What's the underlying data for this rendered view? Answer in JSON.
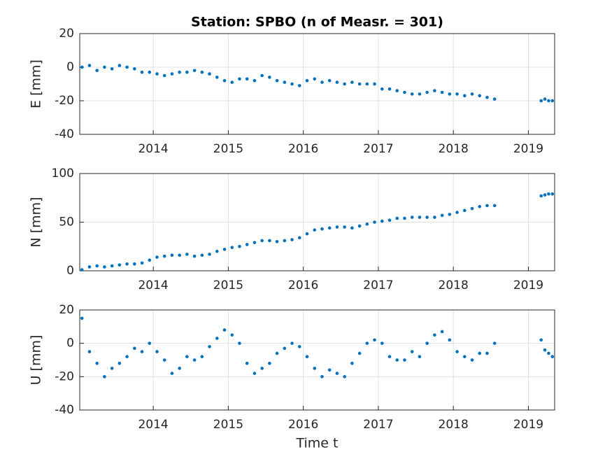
{
  "chart_data": [
    {
      "type": "scatter",
      "title": "Station: SPBO (n of Measr. = 301)",
      "y_label": "E [mm]",
      "color": "#0072bd",
      "grid": true,
      "xlim": [
        2013.02,
        2019.35
      ],
      "xticks": [
        2014,
        2015,
        2016,
        2017,
        2018,
        2019
      ],
      "ylim": [
        -40,
        20
      ],
      "yticks": [
        -40,
        -20,
        0,
        20
      ],
      "x": [
        2013.05,
        2013.15,
        2013.25,
        2013.35,
        2013.45,
        2013.55,
        2013.65,
        2013.75,
        2013.85,
        2013.95,
        2014.05,
        2014.15,
        2014.25,
        2014.35,
        2014.45,
        2014.55,
        2014.65,
        2014.75,
        2014.85,
        2014.95,
        2015.05,
        2015.15,
        2015.25,
        2015.35,
        2015.45,
        2015.55,
        2015.65,
        2015.75,
        2015.85,
        2015.95,
        2016.05,
        2016.15,
        2016.25,
        2016.35,
        2016.45,
        2016.55,
        2016.65,
        2016.75,
        2016.85,
        2016.95,
        2017.05,
        2017.15,
        2017.25,
        2017.35,
        2017.45,
        2017.55,
        2017.65,
        2017.75,
        2017.85,
        2017.95,
        2018.05,
        2018.15,
        2018.25,
        2018.35,
        2018.45,
        2018.55,
        2019.17,
        2019.22,
        2019.27,
        2019.32
      ],
      "values": [
        0,
        1,
        -2,
        0,
        -1,
        1,
        0,
        -1,
        -3,
        -3,
        -4,
        -5,
        -4,
        -3,
        -3,
        -2,
        -3,
        -4,
        -6,
        -8,
        -9,
        -7,
        -7,
        -8,
        -5,
        -6,
        -8,
        -9,
        -10,
        -11,
        -8,
        -7,
        -9,
        -8,
        -9,
        -10,
        -9,
        -10,
        -10,
        -10,
        -13,
        -13,
        -14,
        -15,
        -16,
        -16,
        -15,
        -14,
        -15,
        -16,
        -16,
        -17,
        -16,
        -17,
        -18,
        -19,
        -20,
        -19,
        -20,
        -20
      ]
    },
    {
      "type": "scatter",
      "y_label": "N [mm]",
      "color": "#0072bd",
      "grid": true,
      "xlim": [
        2013.02,
        2019.35
      ],
      "xticks": [
        2014,
        2015,
        2016,
        2017,
        2018,
        2019
      ],
      "ylim": [
        0,
        100
      ],
      "yticks": [
        0,
        50,
        100
      ],
      "x": [
        2013.05,
        2013.15,
        2013.25,
        2013.35,
        2013.45,
        2013.55,
        2013.65,
        2013.75,
        2013.85,
        2013.95,
        2014.05,
        2014.15,
        2014.25,
        2014.35,
        2014.45,
        2014.55,
        2014.65,
        2014.75,
        2014.85,
        2014.95,
        2015.05,
        2015.15,
        2015.25,
        2015.35,
        2015.45,
        2015.55,
        2015.65,
        2015.75,
        2015.85,
        2015.95,
        2016.05,
        2016.15,
        2016.25,
        2016.35,
        2016.45,
        2016.55,
        2016.65,
        2016.75,
        2016.85,
        2016.95,
        2017.05,
        2017.15,
        2017.25,
        2017.35,
        2017.45,
        2017.55,
        2017.65,
        2017.75,
        2017.85,
        2017.95,
        2018.05,
        2018.15,
        2018.25,
        2018.35,
        2018.45,
        2018.55,
        2019.17,
        2019.22,
        2019.27,
        2019.32
      ],
      "values": [
        1,
        4,
        5,
        4,
        5,
        6,
        7,
        7,
        8,
        11,
        14,
        15,
        16,
        16,
        17,
        15,
        16,
        17,
        20,
        22,
        24,
        25,
        27,
        29,
        31,
        31,
        30,
        31,
        32,
        34,
        38,
        42,
        43,
        44,
        45,
        45,
        44,
        46,
        48,
        50,
        51,
        52,
        54,
        54,
        55,
        55,
        55,
        55,
        57,
        58,
        60,
        62,
        64,
        66,
        67,
        67,
        77,
        78,
        79,
        79
      ]
    },
    {
      "type": "scatter",
      "y_label": "U [mm]",
      "x_label": "Time t",
      "color": "#0072bd",
      "grid": true,
      "xlim": [
        2013.02,
        2019.35
      ],
      "xticks": [
        2014,
        2015,
        2016,
        2017,
        2018,
        2019
      ],
      "ylim": [
        -40,
        20
      ],
      "yticks": [
        -40,
        -20,
        0,
        20
      ],
      "x": [
        2013.05,
        2013.15,
        2013.25,
        2013.35,
        2013.45,
        2013.55,
        2013.65,
        2013.75,
        2013.85,
        2013.95,
        2014.05,
        2014.15,
        2014.25,
        2014.35,
        2014.45,
        2014.55,
        2014.65,
        2014.75,
        2014.85,
        2014.95,
        2015.05,
        2015.15,
        2015.25,
        2015.35,
        2015.45,
        2015.55,
        2015.65,
        2015.75,
        2015.85,
        2015.95,
        2016.05,
        2016.15,
        2016.25,
        2016.35,
        2016.45,
        2016.55,
        2016.65,
        2016.75,
        2016.85,
        2016.95,
        2017.05,
        2017.15,
        2017.25,
        2017.35,
        2017.45,
        2017.55,
        2017.65,
        2017.75,
        2017.85,
        2017.95,
        2018.05,
        2018.15,
        2018.25,
        2018.35,
        2018.45,
        2018.55,
        2019.17,
        2019.22,
        2019.27,
        2019.32
      ],
      "values": [
        15,
        -5,
        -12,
        -20,
        -15,
        -12,
        -8,
        -3,
        -5,
        0,
        -5,
        -10,
        -18,
        -15,
        -8,
        -10,
        -8,
        -2,
        3,
        8,
        5,
        0,
        -12,
        -18,
        -15,
        -12,
        -6,
        -3,
        0,
        -2,
        -8,
        -15,
        -20,
        -16,
        -18,
        -20,
        -12,
        -6,
        0,
        2,
        0,
        -8,
        -10,
        -10,
        -5,
        -8,
        0,
        5,
        7,
        2,
        -5,
        -8,
        -10,
        -6,
        -6,
        0,
        2,
        -4,
        -6,
        -8
      ]
    }
  ]
}
